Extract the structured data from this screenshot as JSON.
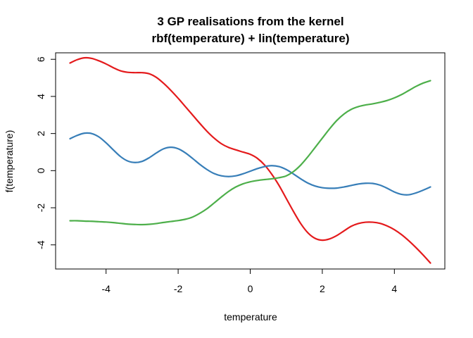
{
  "chart_data": {
    "type": "line",
    "title_line1": "3 GP realisations from the kernel",
    "title_line2": "rbf(temperature) + lin(temperature)",
    "xlabel": "temperature",
    "ylabel": "f(temperature)",
    "xlim": [
      -5.4,
      5.4
    ],
    "ylim": [
      -5.3,
      6.35
    ],
    "x_ticks": [
      {
        "value": -4,
        "label": "-4"
      },
      {
        "value": -2,
        "label": "-2"
      },
      {
        "value": 0,
        "label": "0"
      },
      {
        "value": 2,
        "label": "2"
      },
      {
        "value": 4,
        "label": "4"
      }
    ],
    "y_ticks": [
      {
        "value": -4,
        "label": "-4"
      },
      {
        "value": -2,
        "label": "-2"
      },
      {
        "value": 0,
        "label": "0"
      },
      {
        "value": 2,
        "label": "2"
      },
      {
        "value": 4,
        "label": "4"
      },
      {
        "value": 6,
        "label": "6"
      }
    ],
    "series": [
      {
        "name": "red",
        "color": "#e41a1c",
        "points": [
          [
            -5.0,
            5.8
          ],
          [
            -4.8,
            5.98
          ],
          [
            -4.6,
            6.08
          ],
          [
            -4.4,
            6.05
          ],
          [
            -4.2,
            5.92
          ],
          [
            -4.0,
            5.75
          ],
          [
            -3.8,
            5.55
          ],
          [
            -3.6,
            5.38
          ],
          [
            -3.4,
            5.3
          ],
          [
            -3.2,
            5.28
          ],
          [
            -3.0,
            5.28
          ],
          [
            -2.8,
            5.22
          ],
          [
            -2.6,
            5.02
          ],
          [
            -2.4,
            4.7
          ],
          [
            -2.2,
            4.32
          ],
          [
            -2.0,
            3.9
          ],
          [
            -1.8,
            3.45
          ],
          [
            -1.6,
            3.0
          ],
          [
            -1.4,
            2.55
          ],
          [
            -1.2,
            2.12
          ],
          [
            -1.0,
            1.75
          ],
          [
            -0.8,
            1.45
          ],
          [
            -0.6,
            1.25
          ],
          [
            -0.4,
            1.12
          ],
          [
            -0.2,
            1.0
          ],
          [
            0.0,
            0.88
          ],
          [
            0.2,
            0.66
          ],
          [
            0.4,
            0.3
          ],
          [
            0.6,
            -0.2
          ],
          [
            0.8,
            -0.8
          ],
          [
            1.0,
            -1.5
          ],
          [
            1.2,
            -2.2
          ],
          [
            1.4,
            -2.85
          ],
          [
            1.6,
            -3.35
          ],
          [
            1.8,
            -3.65
          ],
          [
            2.0,
            -3.75
          ],
          [
            2.2,
            -3.68
          ],
          [
            2.4,
            -3.5
          ],
          [
            2.6,
            -3.25
          ],
          [
            2.8,
            -3.0
          ],
          [
            3.0,
            -2.85
          ],
          [
            3.2,
            -2.78
          ],
          [
            3.4,
            -2.78
          ],
          [
            3.6,
            -2.84
          ],
          [
            3.8,
            -2.98
          ],
          [
            4.0,
            -3.18
          ],
          [
            4.2,
            -3.45
          ],
          [
            4.4,
            -3.78
          ],
          [
            4.6,
            -4.15
          ],
          [
            4.8,
            -4.55
          ],
          [
            5.0,
            -4.98
          ]
        ]
      },
      {
        "name": "blue",
        "color": "#377eb8",
        "points": [
          [
            -5.0,
            1.72
          ],
          [
            -4.8,
            1.9
          ],
          [
            -4.6,
            2.02
          ],
          [
            -4.4,
            2.0
          ],
          [
            -4.2,
            1.82
          ],
          [
            -4.0,
            1.5
          ],
          [
            -3.8,
            1.12
          ],
          [
            -3.6,
            0.76
          ],
          [
            -3.4,
            0.52
          ],
          [
            -3.2,
            0.44
          ],
          [
            -3.0,
            0.5
          ],
          [
            -2.8,
            0.7
          ],
          [
            -2.6,
            0.96
          ],
          [
            -2.4,
            1.18
          ],
          [
            -2.2,
            1.26
          ],
          [
            -2.0,
            1.18
          ],
          [
            -1.8,
            0.96
          ],
          [
            -1.6,
            0.66
          ],
          [
            -1.4,
            0.34
          ],
          [
            -1.2,
            0.06
          ],
          [
            -1.0,
            -0.16
          ],
          [
            -0.8,
            -0.28
          ],
          [
            -0.6,
            -0.32
          ],
          [
            -0.4,
            -0.28
          ],
          [
            -0.2,
            -0.17
          ],
          [
            0.0,
            -0.03
          ],
          [
            0.2,
            0.11
          ],
          [
            0.4,
            0.22
          ],
          [
            0.6,
            0.27
          ],
          [
            0.8,
            0.22
          ],
          [
            1.0,
            0.06
          ],
          [
            1.2,
            -0.18
          ],
          [
            1.4,
            -0.44
          ],
          [
            1.6,
            -0.67
          ],
          [
            1.8,
            -0.83
          ],
          [
            2.0,
            -0.92
          ],
          [
            2.2,
            -0.95
          ],
          [
            2.4,
            -0.94
          ],
          [
            2.6,
            -0.88
          ],
          [
            2.8,
            -0.8
          ],
          [
            3.0,
            -0.72
          ],
          [
            3.2,
            -0.68
          ],
          [
            3.4,
            -0.69
          ],
          [
            3.6,
            -0.78
          ],
          [
            3.8,
            -0.95
          ],
          [
            4.0,
            -1.15
          ],
          [
            4.2,
            -1.28
          ],
          [
            4.4,
            -1.3
          ],
          [
            4.6,
            -1.2
          ],
          [
            4.8,
            -1.05
          ],
          [
            5.0,
            -0.88
          ]
        ]
      },
      {
        "name": "green",
        "color": "#4daf4a",
        "points": [
          [
            -5.0,
            -2.7
          ],
          [
            -4.8,
            -2.7
          ],
          [
            -4.6,
            -2.72
          ],
          [
            -4.4,
            -2.73
          ],
          [
            -4.2,
            -2.75
          ],
          [
            -4.0,
            -2.77
          ],
          [
            -3.8,
            -2.8
          ],
          [
            -3.6,
            -2.84
          ],
          [
            -3.4,
            -2.88
          ],
          [
            -3.2,
            -2.9
          ],
          [
            -3.0,
            -2.91
          ],
          [
            -2.8,
            -2.89
          ],
          [
            -2.6,
            -2.85
          ],
          [
            -2.4,
            -2.79
          ],
          [
            -2.2,
            -2.74
          ],
          [
            -2.0,
            -2.69
          ],
          [
            -1.8,
            -2.62
          ],
          [
            -1.6,
            -2.5
          ],
          [
            -1.4,
            -2.3
          ],
          [
            -1.2,
            -2.05
          ],
          [
            -1.0,
            -1.74
          ],
          [
            -0.8,
            -1.42
          ],
          [
            -0.6,
            -1.12
          ],
          [
            -0.4,
            -0.88
          ],
          [
            -0.2,
            -0.71
          ],
          [
            0.0,
            -0.6
          ],
          [
            0.2,
            -0.53
          ],
          [
            0.4,
            -0.48
          ],
          [
            0.6,
            -0.44
          ],
          [
            0.8,
            -0.38
          ],
          [
            1.0,
            -0.28
          ],
          [
            1.2,
            -0.05
          ],
          [
            1.4,
            0.3
          ],
          [
            1.6,
            0.75
          ],
          [
            1.8,
            1.25
          ],
          [
            2.0,
            1.75
          ],
          [
            2.2,
            2.25
          ],
          [
            2.4,
            2.7
          ],
          [
            2.6,
            3.05
          ],
          [
            2.8,
            3.3
          ],
          [
            3.0,
            3.45
          ],
          [
            3.2,
            3.54
          ],
          [
            3.4,
            3.6
          ],
          [
            3.6,
            3.68
          ],
          [
            3.8,
            3.78
          ],
          [
            4.0,
            3.92
          ],
          [
            4.2,
            4.1
          ],
          [
            4.4,
            4.32
          ],
          [
            4.6,
            4.54
          ],
          [
            4.8,
            4.72
          ],
          [
            5.0,
            4.85
          ]
        ]
      }
    ]
  }
}
